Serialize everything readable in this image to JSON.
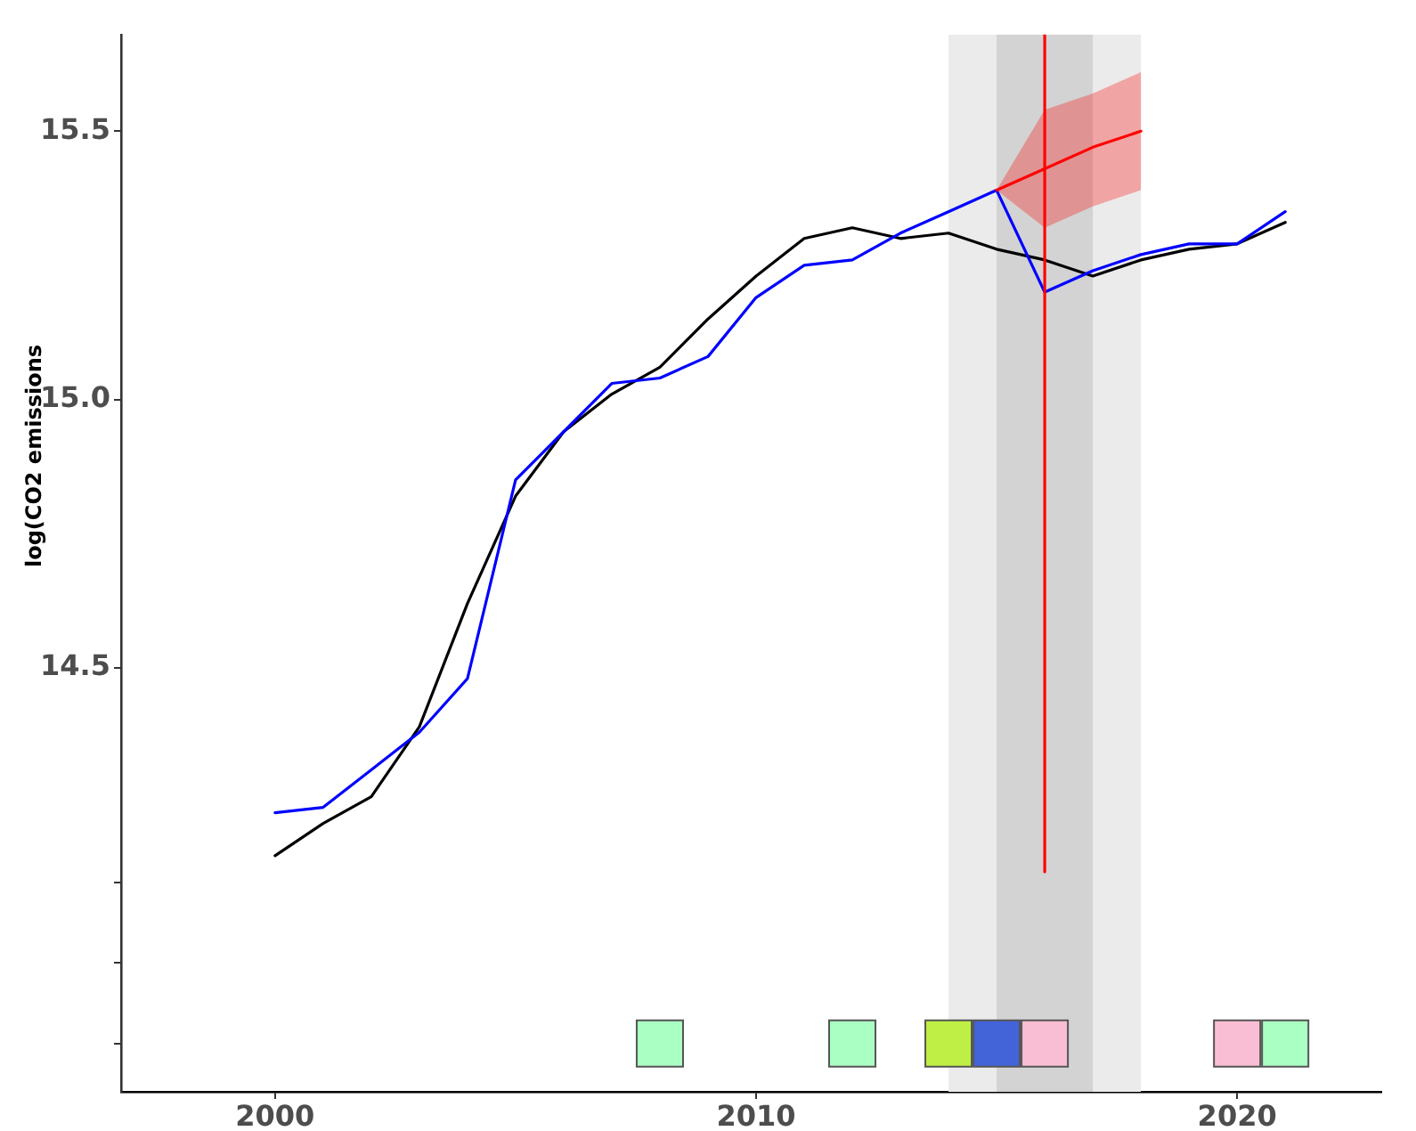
{
  "chart_data": {
    "type": "line",
    "x": [
      2000,
      2001,
      2002,
      2003,
      2004,
      2005,
      2006,
      2007,
      2008,
      2009,
      2010,
      2011,
      2012,
      2013,
      2014,
      2015,
      2016,
      2017,
      2018,
      2019,
      2020,
      2021
    ],
    "series": [
      {
        "color": "#000000",
        "values": [
          14.15,
          14.21,
          14.26,
          14.39,
          14.62,
          14.82,
          14.94,
          15.01,
          15.06,
          15.15,
          15.23,
          15.3,
          15.32,
          15.3,
          15.31,
          15.28,
          15.26,
          15.23,
          15.26,
          15.28,
          15.29,
          15.33
        ]
      },
      {
        "color": "#0000ff",
        "values": [
          14.23,
          14.24,
          14.31,
          14.38,
          14.48,
          14.85,
          14.94,
          15.03,
          15.04,
          15.08,
          15.19,
          15.25,
          15.26,
          15.31,
          15.35,
          15.39,
          15.2,
          15.24,
          15.27,
          15.29,
          15.29,
          15.35
        ]
      },
      {
        "color": "#ff0000",
        "x": [
          2015,
          2016,
          2017,
          2018
        ],
        "values": [
          15.39,
          15.43,
          15.47,
          15.5
        ],
        "lower": [
          15.39,
          15.32,
          15.36,
          15.39
        ],
        "upper": [
          15.39,
          15.54,
          15.57,
          15.61
        ]
      },
      {
        "type": "line",
        "color": "#ff0000",
        "x": [
          2016,
          2016
        ],
        "values": [
          15.68,
          14.12
        ]
      },
      {
        "type": "scatter",
        "marker": "square",
        "x": [
          2008,
          2012,
          2014,
          2015,
          2016,
          2020,
          2021
        ],
        "values": [
          13.8,
          13.8,
          13.8,
          13.8,
          13.8,
          13.8,
          13.8
        ],
        "colors": [
          "#aaffc3",
          "#aaffc3",
          "#bfef45",
          "#4363d8",
          "#fabed4",
          "#fabed4",
          "#aaffc3"
        ]
      }
    ],
    "bands": [
      {
        "axis": "x",
        "from": 2014,
        "to": 2018,
        "color": "#ebebeb"
      },
      {
        "axis": "x",
        "from": 2015,
        "to": 2017,
        "color": "#d3d3d3"
      }
    ],
    "ylabel": "log(CO2 emissions",
    "xlim": [
      1996.8,
      2023
    ],
    "xticks": [
      2000,
      2010,
      2020
    ],
    "ylim": [
      13.71,
      15.68
    ],
    "yticks": [
      {
        "value": 13.8,
        "label": null
      },
      {
        "value": 13.95,
        "label": null
      },
      {
        "value": 14.1,
        "label": null
      },
      14.5,
      {
        "value": 15,
        "label": "15.0"
      },
      15.5
    ],
    "grid": false,
    "legend": false,
    "marker": "none"
  }
}
